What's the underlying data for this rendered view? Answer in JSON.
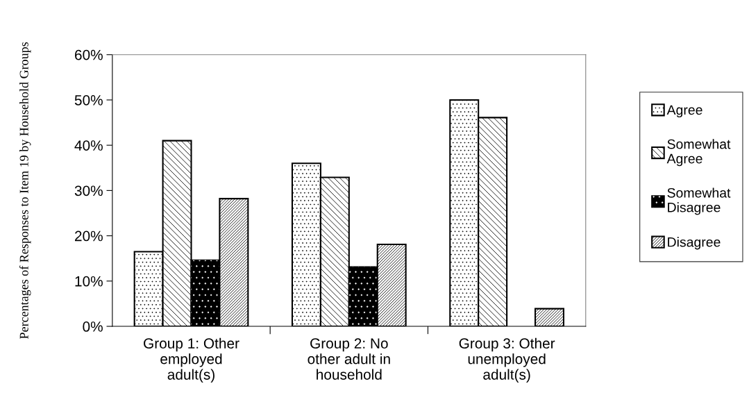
{
  "chart_data": {
    "type": "bar",
    "ylabel": "Percentages of Responses to Item 19 by Household Groups",
    "categories": [
      "Group 1: Other\nemployed\nadult(s)",
      "Group 2: No\nother adult in\nhousehold",
      "Group 3: Other\nunemployed\nadult(s)"
    ],
    "series": [
      {
        "name": "Agree",
        "color": "#ffffff",
        "values": [
          16.5,
          36.0,
          50.0
        ]
      },
      {
        "name": "Somewhat\nAgree",
        "color": "#ffffff",
        "values": [
          41.0,
          32.9,
          46.1
        ]
      },
      {
        "name": "Somewhat\nDisagree",
        "color": "#000000",
        "values": [
          14.6,
          13.1,
          null
        ]
      },
      {
        "name": "Disagree",
        "color": "#ffffff",
        "values": [
          28.2,
          18.1,
          3.9
        ]
      }
    ],
    "ylim": [
      0,
      60
    ],
    "yticks": [
      {
        "value": 0,
        "label": "0%"
      },
      {
        "value": 10,
        "label": "10%"
      },
      {
        "value": 20,
        "label": "20%"
      },
      {
        "value": 30,
        "label": "30%"
      },
      {
        "value": 40,
        "label": "40%"
      },
      {
        "value": 50,
        "label": "50%"
      },
      {
        "value": 60,
        "label": "60%"
      }
    ],
    "grid": false,
    "legend": "right"
  }
}
